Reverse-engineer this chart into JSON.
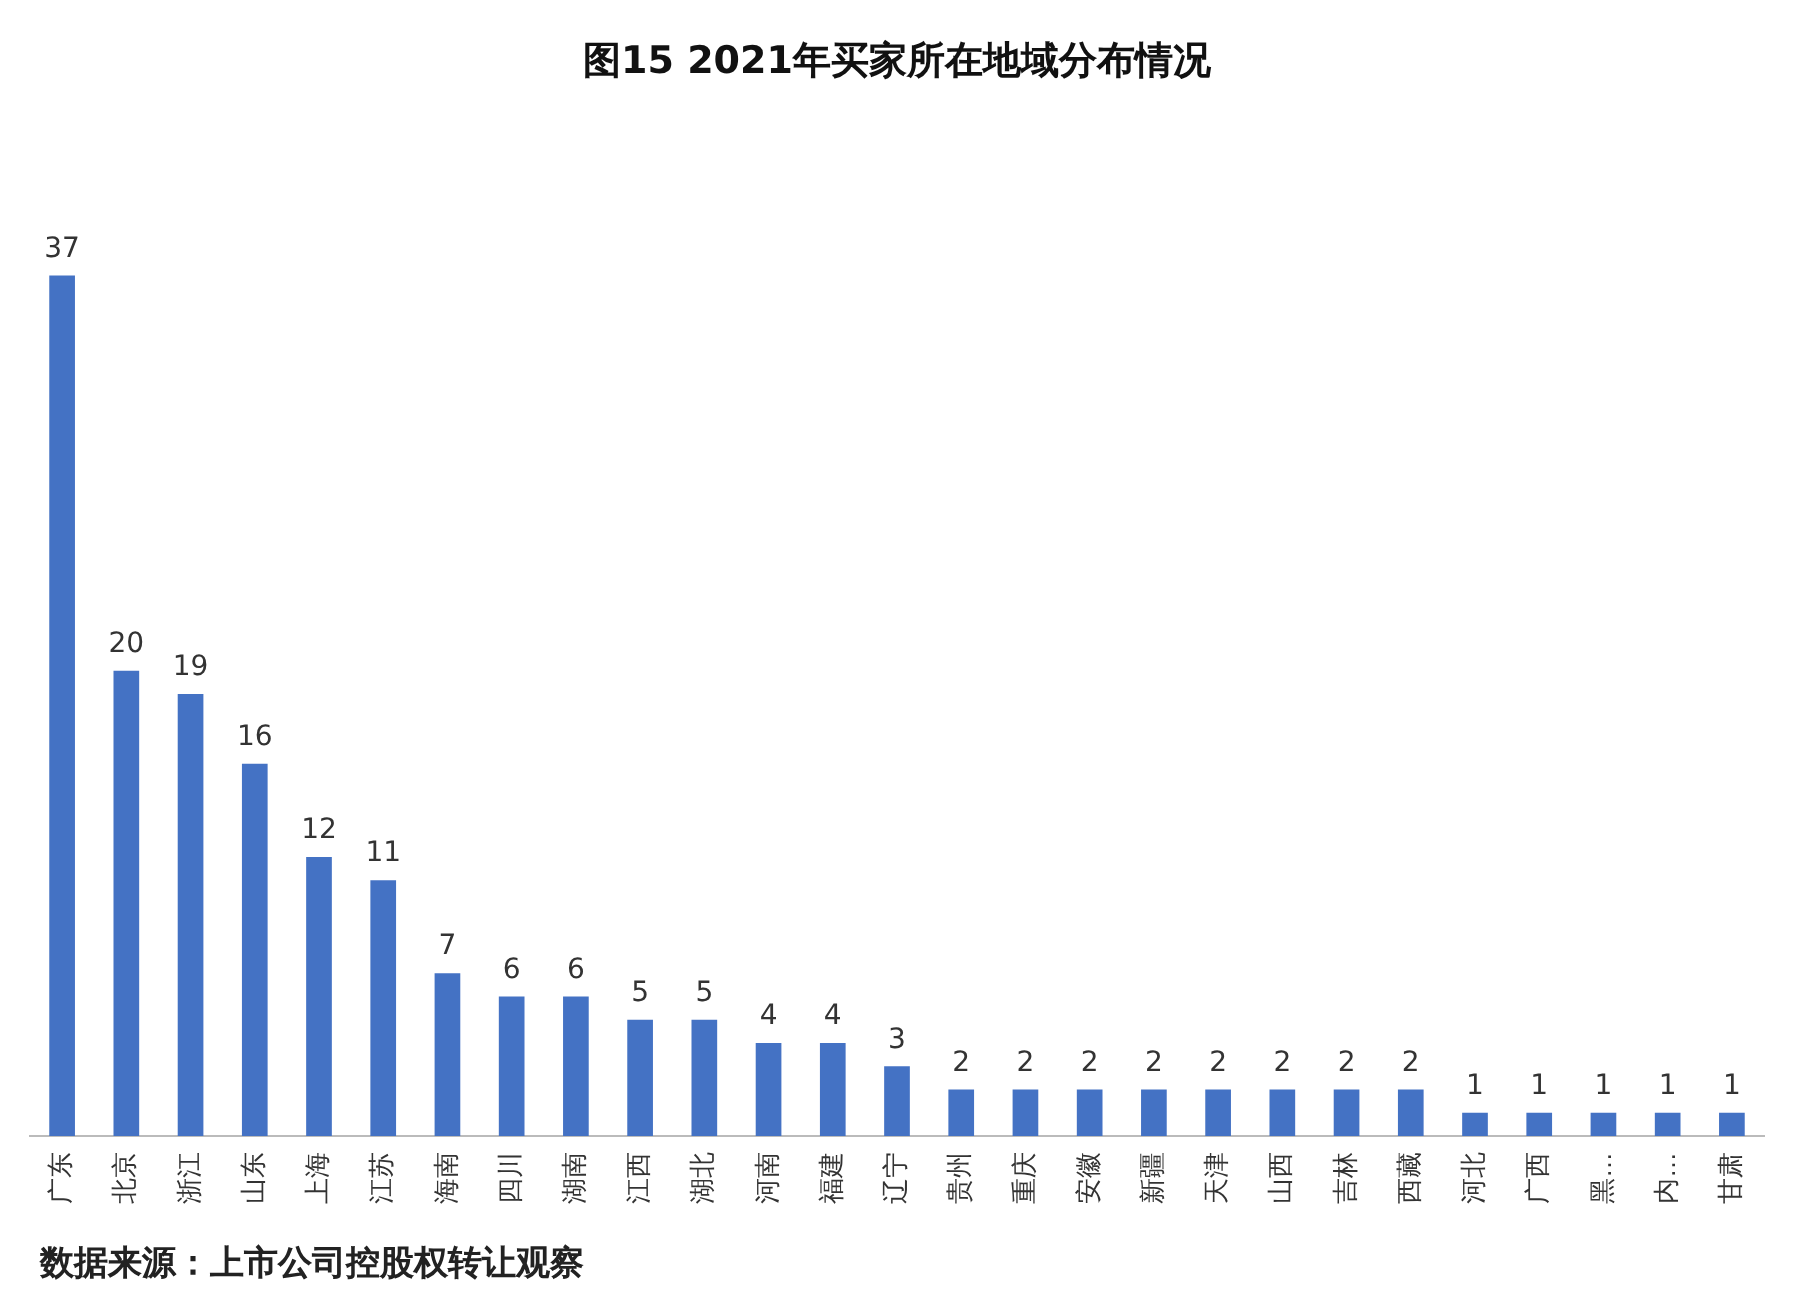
{
  "chart_data": {
    "type": "bar",
    "title": "图15 2021年买家所在地域分布情况",
    "categories": [
      "广东",
      "北京",
      "浙江",
      "山东",
      "上海",
      "江苏",
      "海南",
      "四川",
      "湖南",
      "江西",
      "湖北",
      "河南",
      "福建",
      "辽宁",
      "贵州",
      "重庆",
      "安徽",
      "新疆",
      "天津",
      "山西",
      "吉林",
      "西藏",
      "河北",
      "广西",
      "黑…",
      "内…",
      "甘肃"
    ],
    "values": [
      37,
      20,
      19,
      16,
      12,
      11,
      7,
      6,
      6,
      5,
      5,
      4,
      4,
      3,
      2,
      2,
      2,
      2,
      2,
      2,
      2,
      2,
      1,
      1,
      1,
      1,
      1
    ],
    "color": "#4472c4",
    "data_labels": true,
    "grid": false,
    "legend": false,
    "annotations": [
      "数据来源：上市公司控股权转让观察"
    ]
  }
}
